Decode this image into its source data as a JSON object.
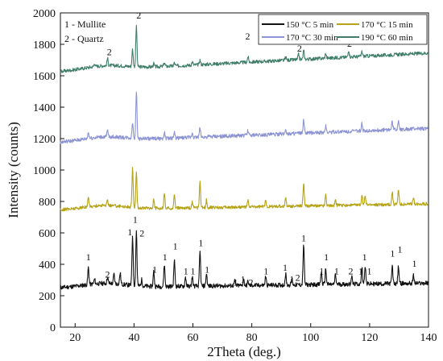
{
  "chart_data": {
    "type": "line",
    "xlabel": "2Theta (deg.)",
    "ylabel": "Intensity (counts)",
    "xlim": [
      15,
      140
    ],
    "ylim": [
      0,
      2000
    ],
    "xticks": [
      20,
      40,
      60,
      80,
      100,
      120,
      140
    ],
    "yticks": [
      0,
      200,
      400,
      600,
      800,
      1000,
      1200,
      1400,
      1600,
      1800,
      2000
    ],
    "phase_key": [
      "1 - Mullite",
      "2 - Quartz"
    ],
    "legend_position": "top-right",
    "series": [
      {
        "name": "150 °C 5 min",
        "color": "#111111",
        "baseline": 250,
        "end_level": 280,
        "noise": 14,
        "peaks": [
          [
            24.5,
            110
          ],
          [
            26.6,
            30
          ],
          [
            31.0,
            40
          ],
          [
            33.2,
            60
          ],
          [
            35.3,
            70
          ],
          [
            39.5,
            320
          ],
          [
            40.8,
            350
          ],
          [
            42.6,
            40
          ],
          [
            46.7,
            95
          ],
          [
            50.3,
            140
          ],
          [
            53.7,
            170
          ],
          [
            57.5,
            60
          ],
          [
            59.8,
            60
          ],
          [
            62.4,
            220
          ],
          [
            64.6,
            80
          ],
          [
            74.2,
            30
          ],
          [
            77.2,
            40
          ],
          [
            78.7,
            25
          ],
          [
            84.7,
            55
          ],
          [
            91.5,
            70
          ],
          [
            93.6,
            40
          ],
          [
            97.6,
            260
          ],
          [
            103.6,
            80
          ],
          [
            105.1,
            100
          ],
          [
            108.4,
            60
          ],
          [
            113.9,
            50
          ],
          [
            117.4,
            100
          ],
          [
            118.5,
            120
          ],
          [
            127.7,
            110
          ],
          [
            129.8,
            110
          ],
          [
            134.9,
            50
          ]
        ]
      },
      {
        "name": "170 °C 15 min",
        "color": "#b5a316",
        "baseline": 745,
        "end_level": 785,
        "noise": 10,
        "peaks": [
          [
            24.5,
            60
          ],
          [
            31.0,
            30
          ],
          [
            39.5,
            250
          ],
          [
            40.8,
            220
          ],
          [
            46.7,
            60
          ],
          [
            50.3,
            100
          ],
          [
            53.7,
            90
          ],
          [
            59.8,
            40
          ],
          [
            62.4,
            160
          ],
          [
            64.6,
            50
          ],
          [
            78.7,
            40
          ],
          [
            84.7,
            40
          ],
          [
            91.5,
            55
          ],
          [
            97.6,
            145
          ],
          [
            105.1,
            70
          ],
          [
            108.4,
            35
          ],
          [
            117.4,
            70
          ],
          [
            118.5,
            55
          ],
          [
            127.7,
            80
          ],
          [
            129.8,
            95
          ],
          [
            134.9,
            40
          ]
        ]
      },
      {
        "name": "170 °C 30 min",
        "color": "#8b93d4",
        "baseline": 1175,
        "end_level": 1265,
        "noise": 12,
        "peaks": [
          [
            24.5,
            40
          ],
          [
            31.0,
            40
          ],
          [
            39.5,
            100
          ],
          [
            40.8,
            300
          ],
          [
            50.3,
            40
          ],
          [
            53.7,
            35
          ],
          [
            59.8,
            30
          ],
          [
            62.4,
            60
          ],
          [
            78.7,
            30
          ],
          [
            91.5,
            30
          ],
          [
            97.6,
            80
          ],
          [
            105.1,
            40
          ],
          [
            117.4,
            45
          ],
          [
            127.7,
            55
          ],
          [
            129.8,
            60
          ]
        ]
      },
      {
        "name": "190 °C 60 min",
        "color": "#3f7f6a",
        "baseline": 1625,
        "end_level": 1745,
        "noise": 11,
        "peaks": [
          [
            26.6,
            20
          ],
          [
            31.0,
            45
          ],
          [
            39.5,
            110
          ],
          [
            40.8,
            260
          ],
          [
            46.7,
            20
          ],
          [
            50.3,
            25
          ],
          [
            53.7,
            20
          ],
          [
            59.8,
            20
          ],
          [
            62.4,
            30
          ],
          [
            78.7,
            35
          ],
          [
            91.5,
            20
          ],
          [
            95.9,
            35
          ],
          [
            97.6,
            55
          ],
          [
            105.1,
            30
          ],
          [
            112.9,
            45
          ],
          [
            117.4,
            30
          ]
        ]
      }
    ],
    "annotations": [
      {
        "text": "1",
        "x": 24.5,
        "y": 425
      },
      {
        "text": "2",
        "x": 31.0,
        "y": 315
      },
      {
        "text": "1",
        "x": 38.6,
        "y": 585
      },
      {
        "text": "1",
        "x": 40.4,
        "y": 665
      },
      {
        "text": "2",
        "x": 42.7,
        "y": 578
      },
      {
        "text": "1",
        "x": 47.0,
        "y": 345
      },
      {
        "text": "1",
        "x": 50.5,
        "y": 425
      },
      {
        "text": "1",
        "x": 54.0,
        "y": 495
      },
      {
        "text": "1",
        "x": 57.6,
        "y": 335
      },
      {
        "text": "1",
        "x": 60.0,
        "y": 335
      },
      {
        "text": "1",
        "x": 62.7,
        "y": 515
      },
      {
        "text": "1",
        "x": 64.8,
        "y": 345
      },
      {
        "text": "1",
        "x": 74.5,
        "y": 265
      },
      {
        "text": "1",
        "x": 77.0,
        "y": 285
      },
      {
        "text": "2",
        "x": 79.7,
        "y": 265
      },
      {
        "text": "1",
        "x": 84.8,
        "y": 335
      },
      {
        "text": "1",
        "x": 91.3,
        "y": 360
      },
      {
        "text": "1",
        "x": 93.6,
        "y": 285
      },
      {
        "text": "2",
        "x": 95.6,
        "y": 295
      },
      {
        "text": "1",
        "x": 97.6,
        "y": 545
      },
      {
        "text": "1",
        "x": 103.7,
        "y": 335
      },
      {
        "text": "1",
        "x": 105.3,
        "y": 425
      },
      {
        "text": "1",
        "x": 108.8,
        "y": 335
      },
      {
        "text": "2",
        "x": 113.6,
        "y": 335
      },
      {
        "text": "1",
        "x": 117.0,
        "y": 335
      },
      {
        "text": "1",
        "x": 118.3,
        "y": 425
      },
      {
        "text": "1",
        "x": 119.9,
        "y": 335
      },
      {
        "text": "1",
        "x": 127.8,
        "y": 450
      },
      {
        "text": "1",
        "x": 130.3,
        "y": 475
      },
      {
        "text": "1",
        "x": 135.2,
        "y": 385
      },
      {
        "text": "2",
        "x": 31.6,
        "y": 1730
      },
      {
        "text": "2",
        "x": 41.6,
        "y": 1965
      },
      {
        "text": "2",
        "x": 78.6,
        "y": 1830
      },
      {
        "text": "2",
        "x": 96.2,
        "y": 1755
      },
      {
        "text": "2",
        "x": 113.2,
        "y": 1785
      }
    ]
  }
}
